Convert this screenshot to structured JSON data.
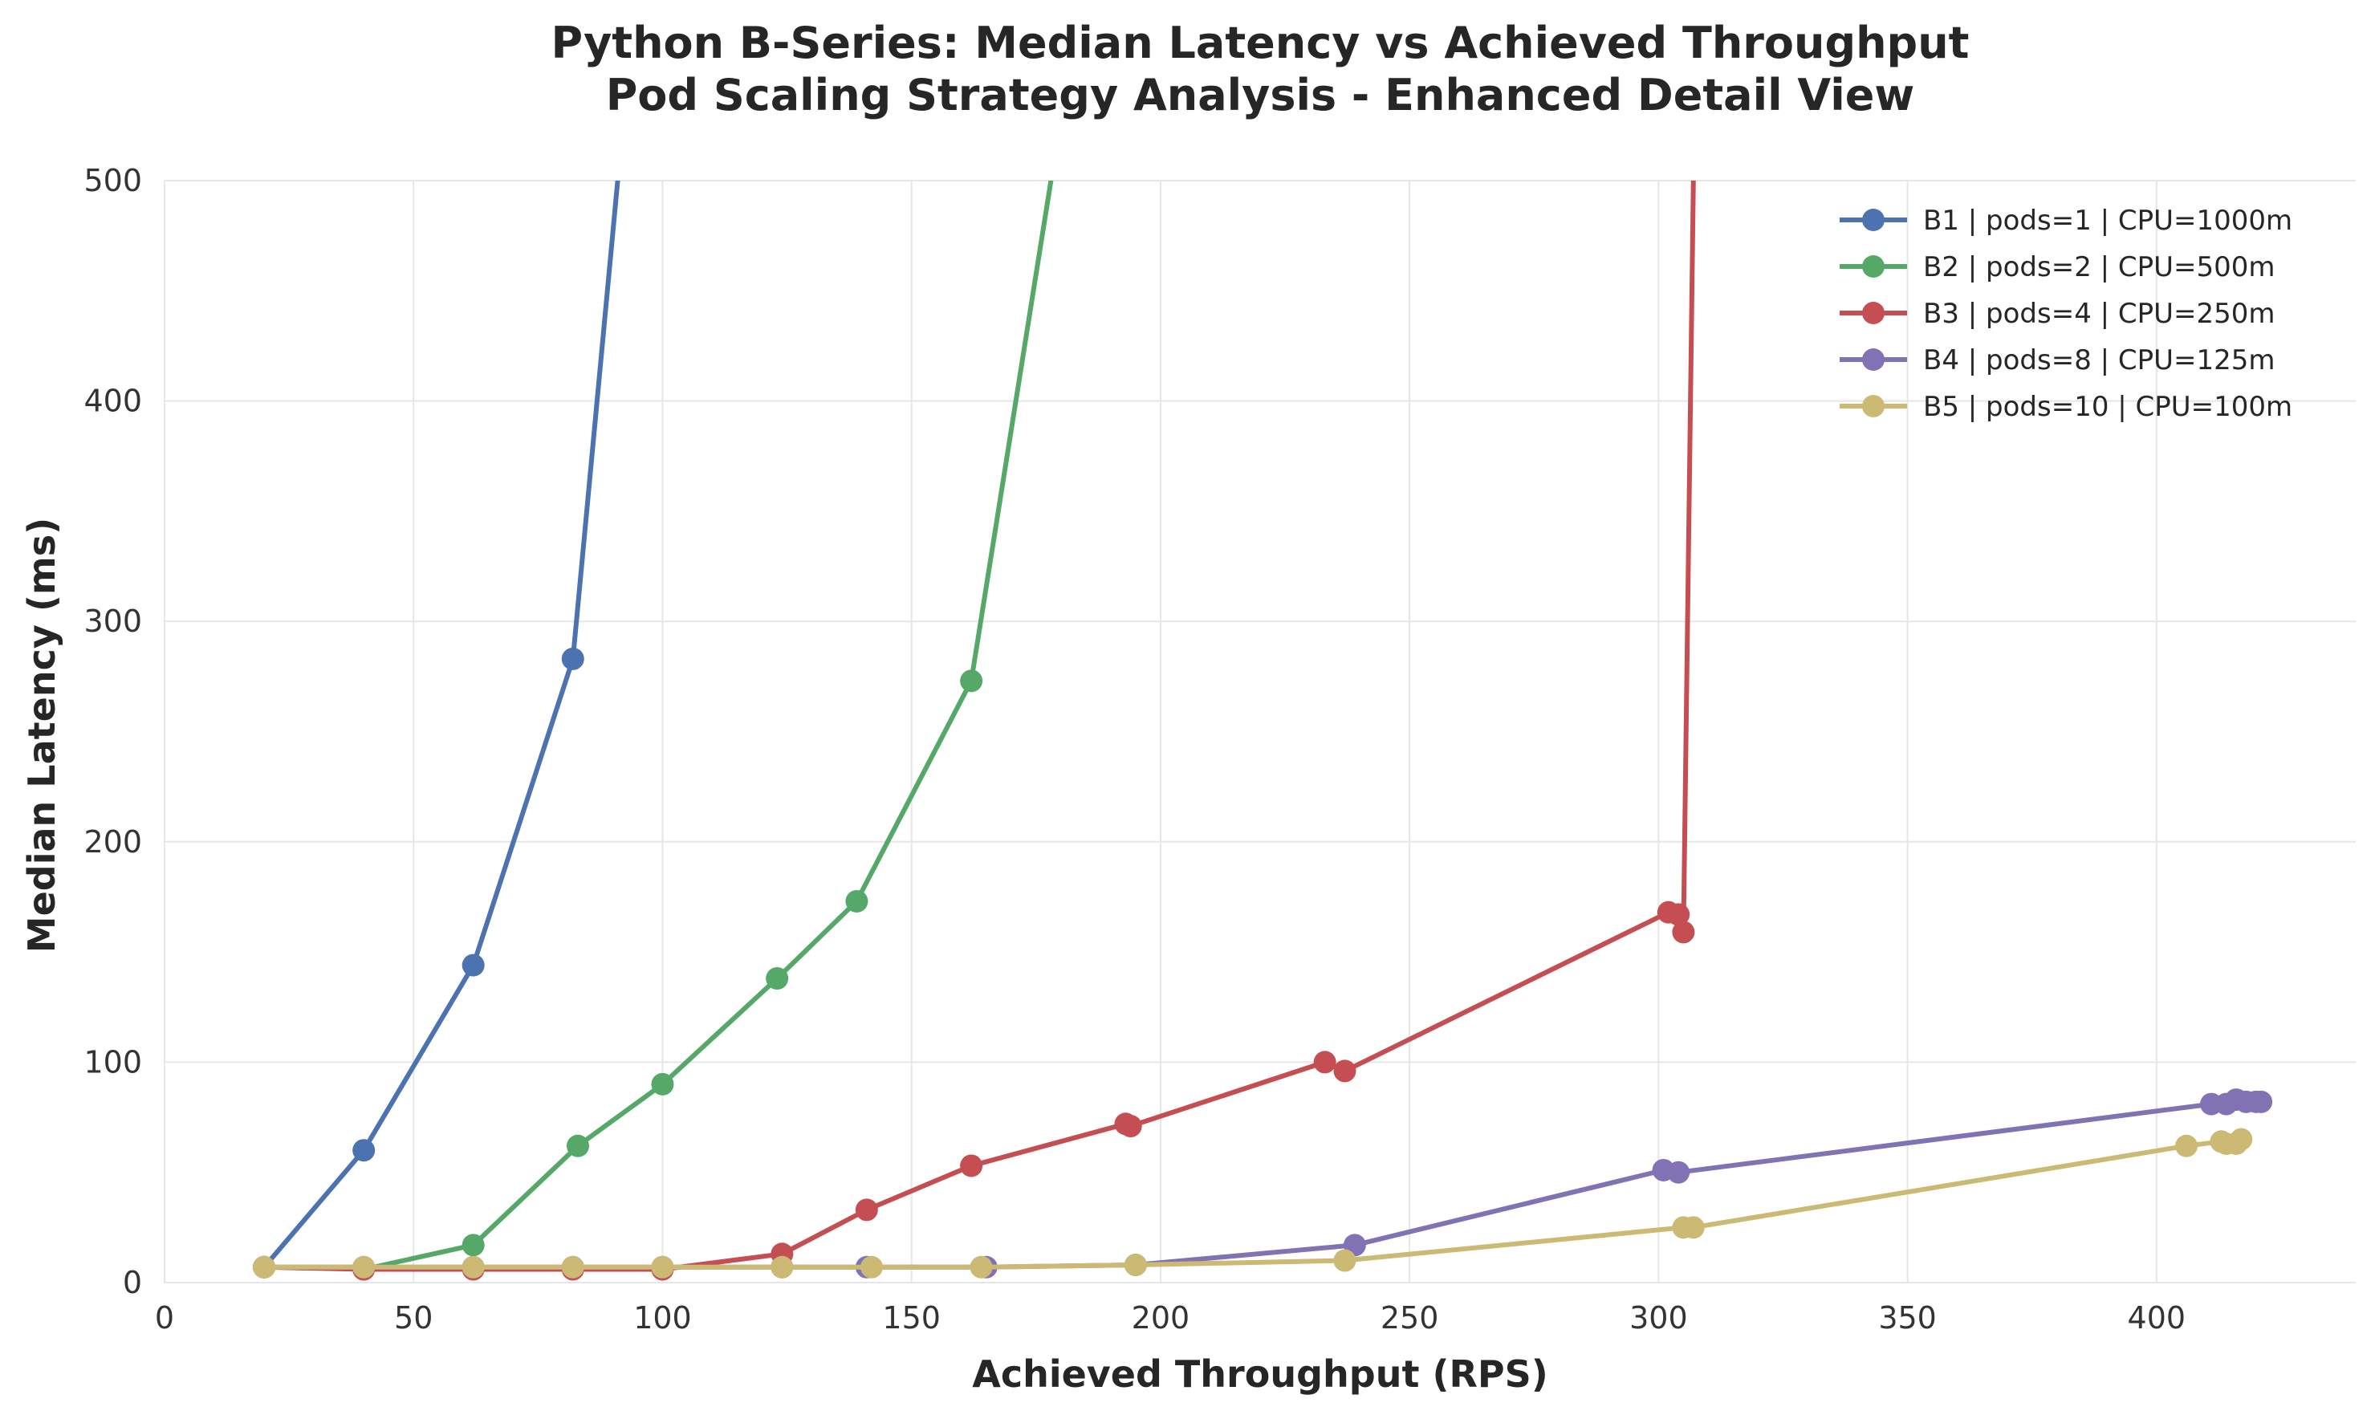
{
  "chart_data": {
    "type": "line",
    "title": "Python B-Series: Median Latency vs Achieved Throughput",
    "subtitle": "Pod Scaling Strategy Analysis - Enhanced Detail View",
    "xlabel": "Achieved Throughput (RPS)",
    "ylabel": "Median Latency (ms)",
    "xlim": [
      0,
      440
    ],
    "ylim": [
      0,
      500
    ],
    "xticks": [
      0,
      50,
      100,
      150,
      200,
      250,
      300,
      350,
      400
    ],
    "yticks": [
      0,
      100,
      200,
      300,
      400,
      500
    ],
    "grid": true,
    "legend_position": "top-right",
    "series": [
      {
        "name": "B1 | pods=1 | CPU=1000m",
        "color": "#4c72b0",
        "points": [
          [
            20,
            7
          ],
          [
            40,
            60
          ],
          [
            62,
            144
          ],
          [
            82,
            283
          ],
          [
            91,
            500
          ]
        ]
      },
      {
        "name": "B2 | pods=2 | CPU=500m",
        "color": "#55a868",
        "points": [
          [
            40,
            6
          ],
          [
            62,
            17
          ],
          [
            83,
            62
          ],
          [
            100,
            90
          ],
          [
            123,
            138
          ],
          [
            139,
            173
          ],
          [
            162,
            273
          ],
          [
            178,
            500
          ]
        ]
      },
      {
        "name": "B3 | pods=4 | CPU=250m",
        "color": "#c44e52",
        "points": [
          [
            20,
            7
          ],
          [
            40,
            6
          ],
          [
            62,
            6
          ],
          [
            82,
            6
          ],
          [
            100,
            6
          ],
          [
            124,
            13
          ],
          [
            141,
            33
          ],
          [
            162,
            53
          ],
          [
            193,
            72
          ],
          [
            194,
            71
          ],
          [
            233,
            100
          ],
          [
            237,
            96
          ],
          [
            302,
            168
          ],
          [
            304,
            167
          ],
          [
            305,
            159
          ],
          [
            307,
            500
          ]
        ]
      },
      {
        "name": "B4 | pods=8 | CPU=125m",
        "color": "#8172b3",
        "points": [
          [
            20,
            7
          ],
          [
            40,
            7
          ],
          [
            62,
            7
          ],
          [
            82,
            7
          ],
          [
            100,
            7
          ],
          [
            124,
            7
          ],
          [
            141,
            7
          ],
          [
            165,
            7
          ],
          [
            195,
            8
          ],
          [
            239,
            17
          ],
          [
            301,
            51
          ],
          [
            304,
            50
          ],
          [
            411,
            81
          ],
          [
            414,
            81
          ],
          [
            416,
            83
          ],
          [
            418,
            82
          ],
          [
            420,
            82
          ],
          [
            421,
            82
          ]
        ]
      },
      {
        "name": "B5 | pods=10 | CPU=100m",
        "color": "#ccb974",
        "points": [
          [
            20,
            7
          ],
          [
            40,
            7
          ],
          [
            62,
            7
          ],
          [
            82,
            7
          ],
          [
            100,
            7
          ],
          [
            124,
            7
          ],
          [
            142,
            7
          ],
          [
            164,
            7
          ],
          [
            195,
            8
          ],
          [
            237,
            10
          ],
          [
            305,
            25
          ],
          [
            307,
            25
          ],
          [
            406,
            62
          ],
          [
            413,
            64
          ],
          [
            414,
            63
          ],
          [
            416,
            63
          ],
          [
            417,
            65
          ]
        ]
      }
    ]
  }
}
